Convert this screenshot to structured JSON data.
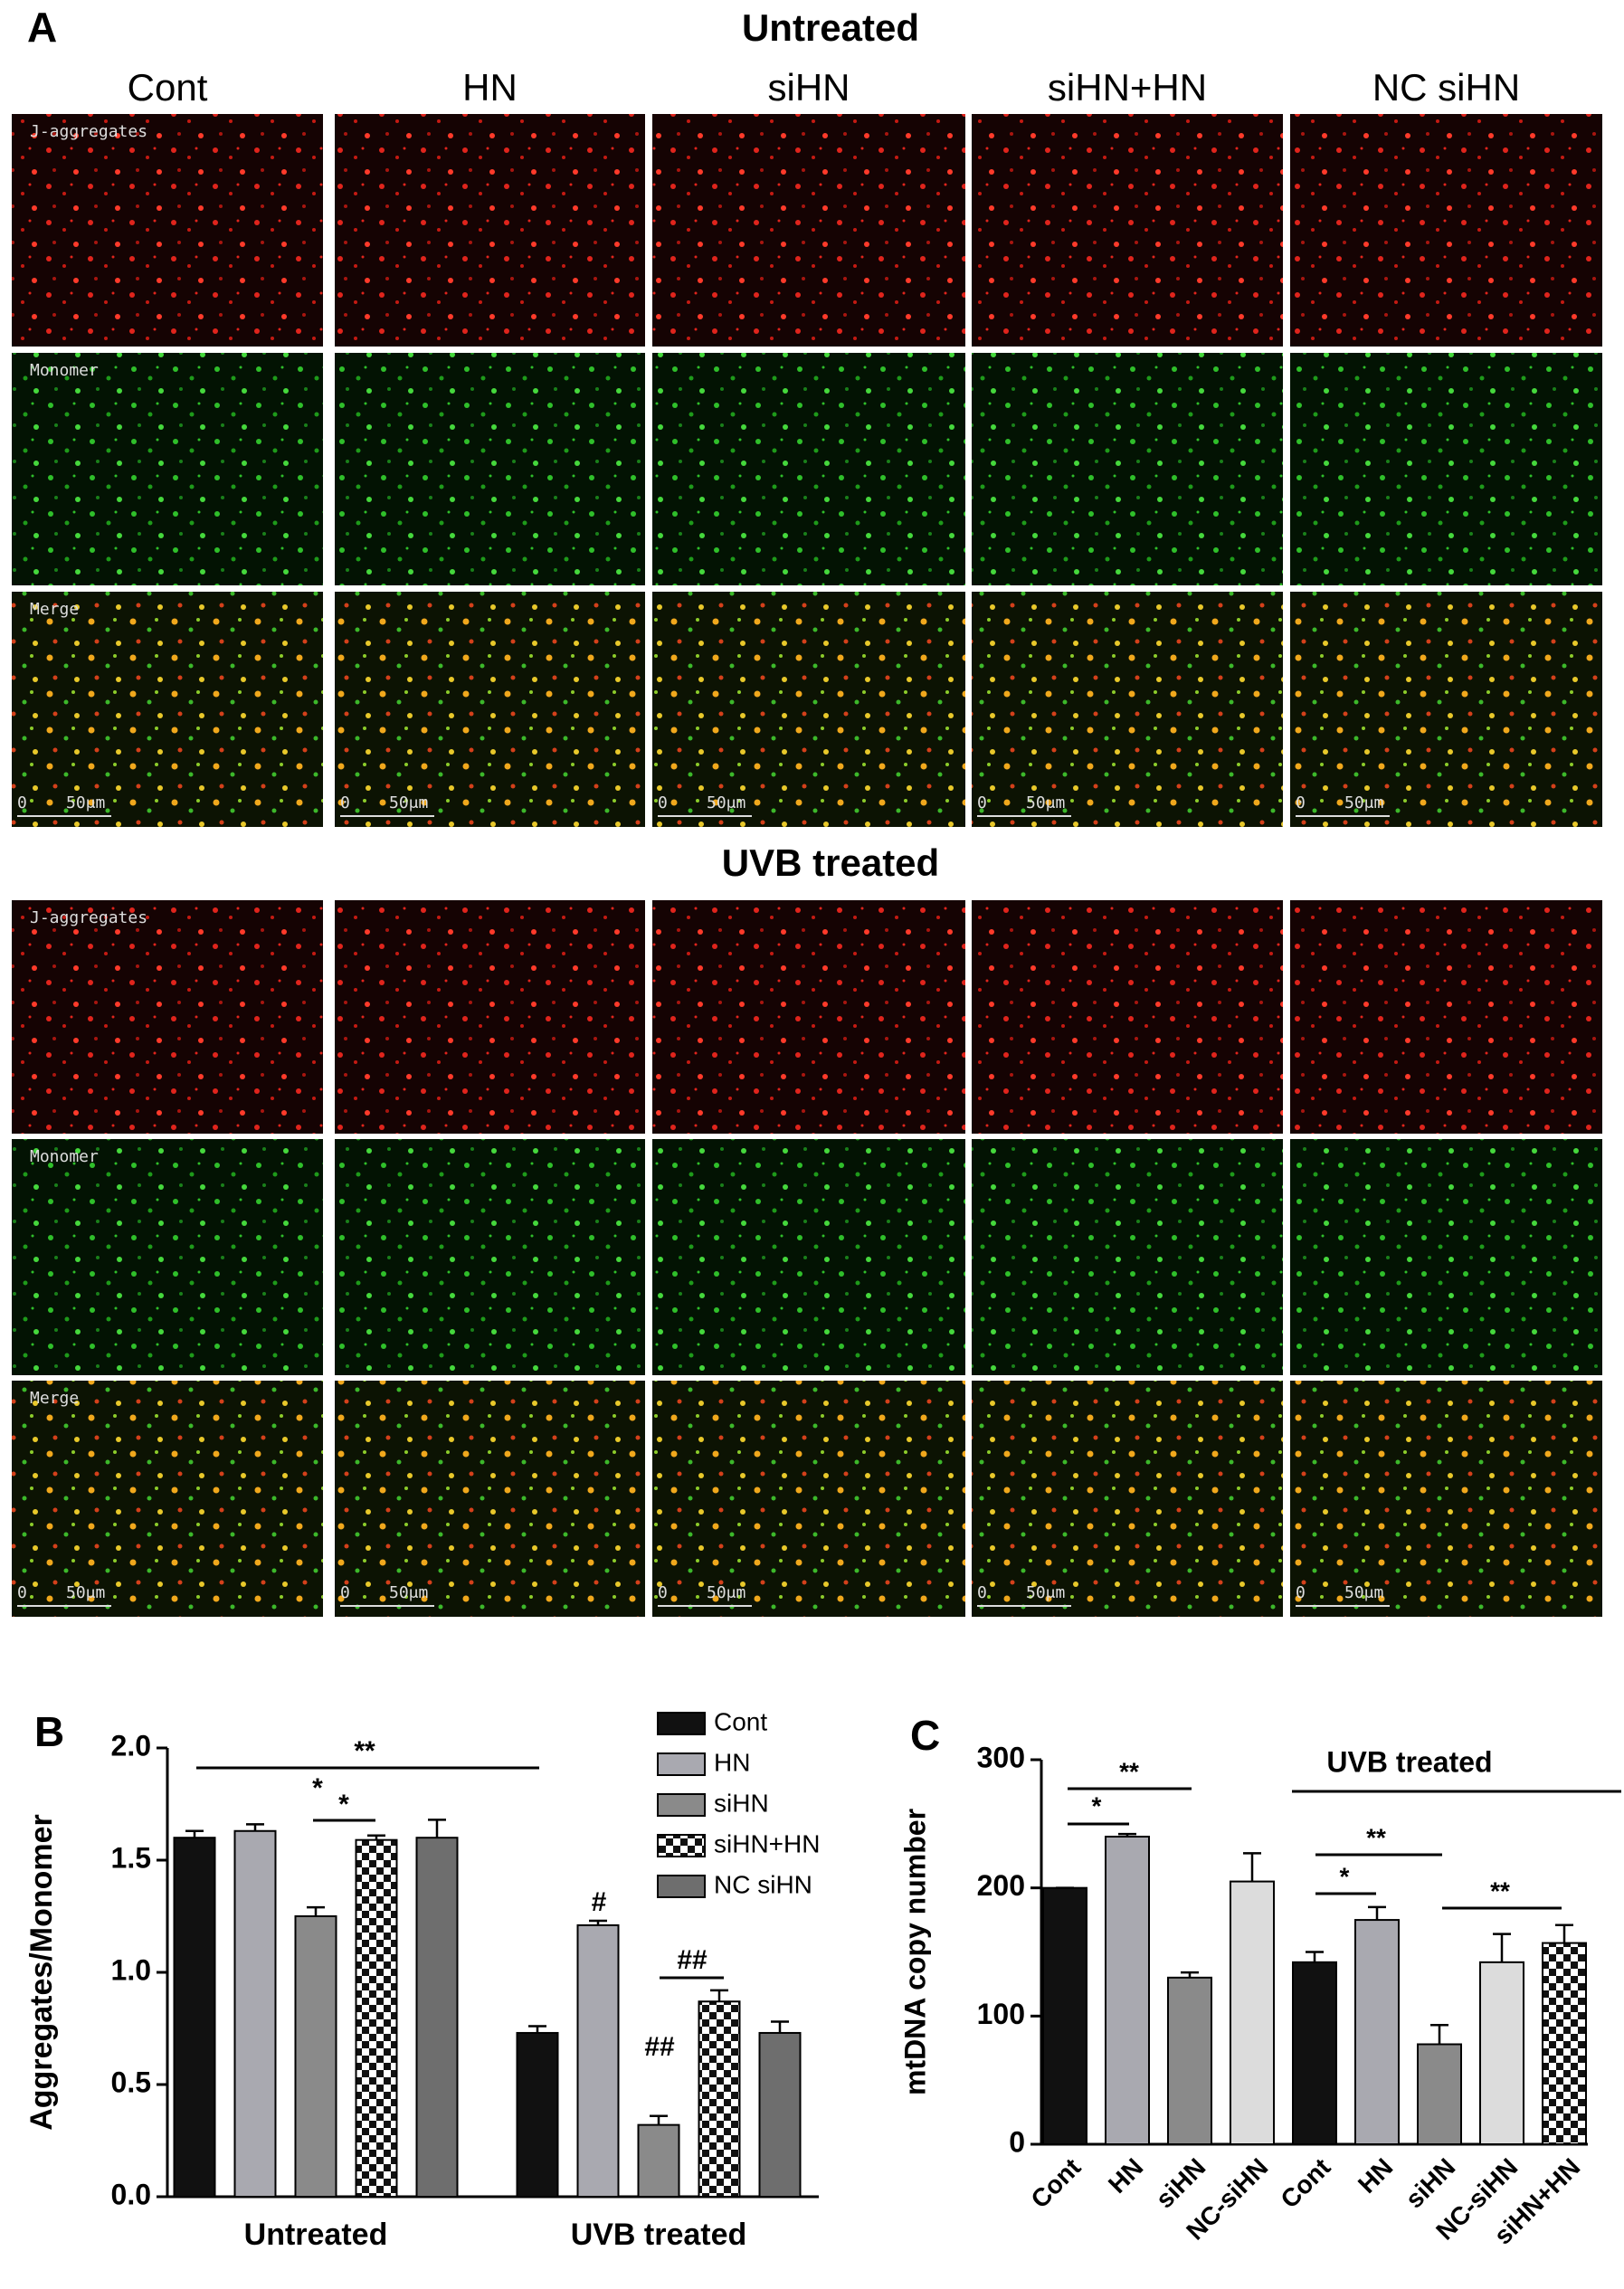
{
  "panel_labels": [
    "A",
    "B",
    "C"
  ],
  "figure_a": {
    "blocks": [
      {
        "title": "Untreated"
      },
      {
        "title": "UVB treated"
      }
    ],
    "columns": [
      "Cont",
      "HN",
      "siHN",
      "siHN+HN",
      "NC siHN"
    ],
    "rows": [
      "J-aggregates",
      "Monomer",
      "Merge"
    ],
    "scale_bar": {
      "zero": "0",
      "length": "50μm"
    }
  },
  "chart_data": [
    {
      "type": "bar",
      "y_label": "Aggregates/Monomer",
      "categories": [
        "Untreated",
        "UVB treated"
      ],
      "ylim": [
        0,
        2
      ],
      "yticks": [
        {
          "value": 0,
          "label": "0.0"
        },
        {
          "value": 0.5,
          "label": "0.5"
        },
        {
          "value": 1,
          "label": "1.0"
        },
        {
          "value": 1.5,
          "label": "1.5"
        },
        {
          "value": 2,
          "label": "2.0"
        }
      ],
      "legend": "upper right",
      "series": [
        {
          "name": "Cont",
          "fill": "#111111",
          "values": [
            1.6,
            0.73
          ],
          "errors": [
            0.03,
            0.03
          ]
        },
        {
          "name": "HN",
          "fill": "#a9a9b0",
          "values": [
            1.63,
            1.21
          ],
          "errors": [
            0.03,
            0.02
          ]
        },
        {
          "name": "siHN",
          "fill": "#8a8a8a",
          "values": [
            1.25,
            0.32
          ],
          "errors": [
            0.04,
            0.04
          ]
        },
        {
          "name": "siHN+HN",
          "fill": "checkerboard",
          "values": [
            1.59,
            0.87
          ],
          "errors": [
            0.02,
            0.05
          ]
        },
        {
          "name": "NC siHN",
          "fill": "#6e6e6e",
          "values": [
            1.6,
            0.73
          ],
          "errors": [
            0.08,
            0.05
          ]
        }
      ],
      "annotations": [
        "**",
        "*",
        "*",
        "#",
        "##",
        "##"
      ]
    },
    {
      "type": "bar",
      "y_label": "mtDNA copy number",
      "categories": [
        "Cont",
        "HN",
        "siHN",
        "NC-siHN",
        "Cont",
        "HN",
        "siHN",
        "NC-siHN",
        "siHN+HN"
      ],
      "values": [
        200,
        240,
        130,
        205,
        142,
        175,
        78,
        142,
        157
      ],
      "errors": [
        0,
        2,
        4,
        22,
        8,
        10,
        15,
        22,
        14
      ],
      "fills": [
        "#111111",
        "#a9a9b0",
        "#8a8a8a",
        "#dcdcdc",
        "#111111",
        "#a9a9b0",
        "#8a8a8a",
        "#dcdcdc",
        "checkerboard"
      ],
      "ylim": [
        0,
        300
      ],
      "yticks": [
        0,
        100,
        200,
        300
      ],
      "group_label": "UVB treated",
      "annotations": [
        "**",
        "*",
        "**",
        "*",
        "**"
      ]
    }
  ]
}
